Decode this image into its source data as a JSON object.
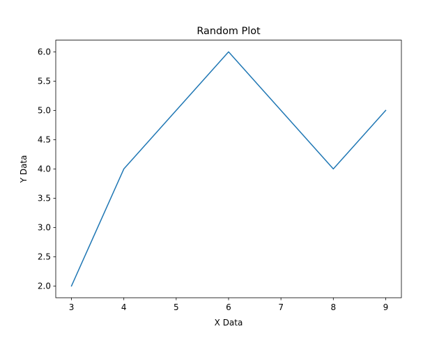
{
  "chart_data": {
    "type": "line",
    "title": "Random Plot",
    "xlabel": "X Data",
    "ylabel": "Y Data",
    "x": [
      3,
      4,
      5,
      6,
      7,
      8,
      9
    ],
    "series": [
      {
        "values": [
          2,
          4,
          5,
          6,
          5,
          4,
          5
        ],
        "color": "#1f77b4"
      }
    ],
    "xlim": [
      2.7,
      9.3
    ],
    "ylim": [
      1.8,
      6.2
    ],
    "xticks": [
      3,
      4,
      5,
      6,
      7,
      8,
      9
    ],
    "yticks": [
      2.0,
      2.5,
      3.0,
      3.5,
      4.0,
      4.5,
      5.0,
      5.5,
      6.0
    ],
    "xtick_labels": [
      "3",
      "4",
      "5",
      "6",
      "7",
      "8",
      "9"
    ],
    "ytick_labels": [
      "2.0",
      "2.5",
      "3.0",
      "3.5",
      "4.0",
      "4.5",
      "5.0",
      "5.5",
      "6.0"
    ],
    "grid": false,
    "legend": false
  }
}
